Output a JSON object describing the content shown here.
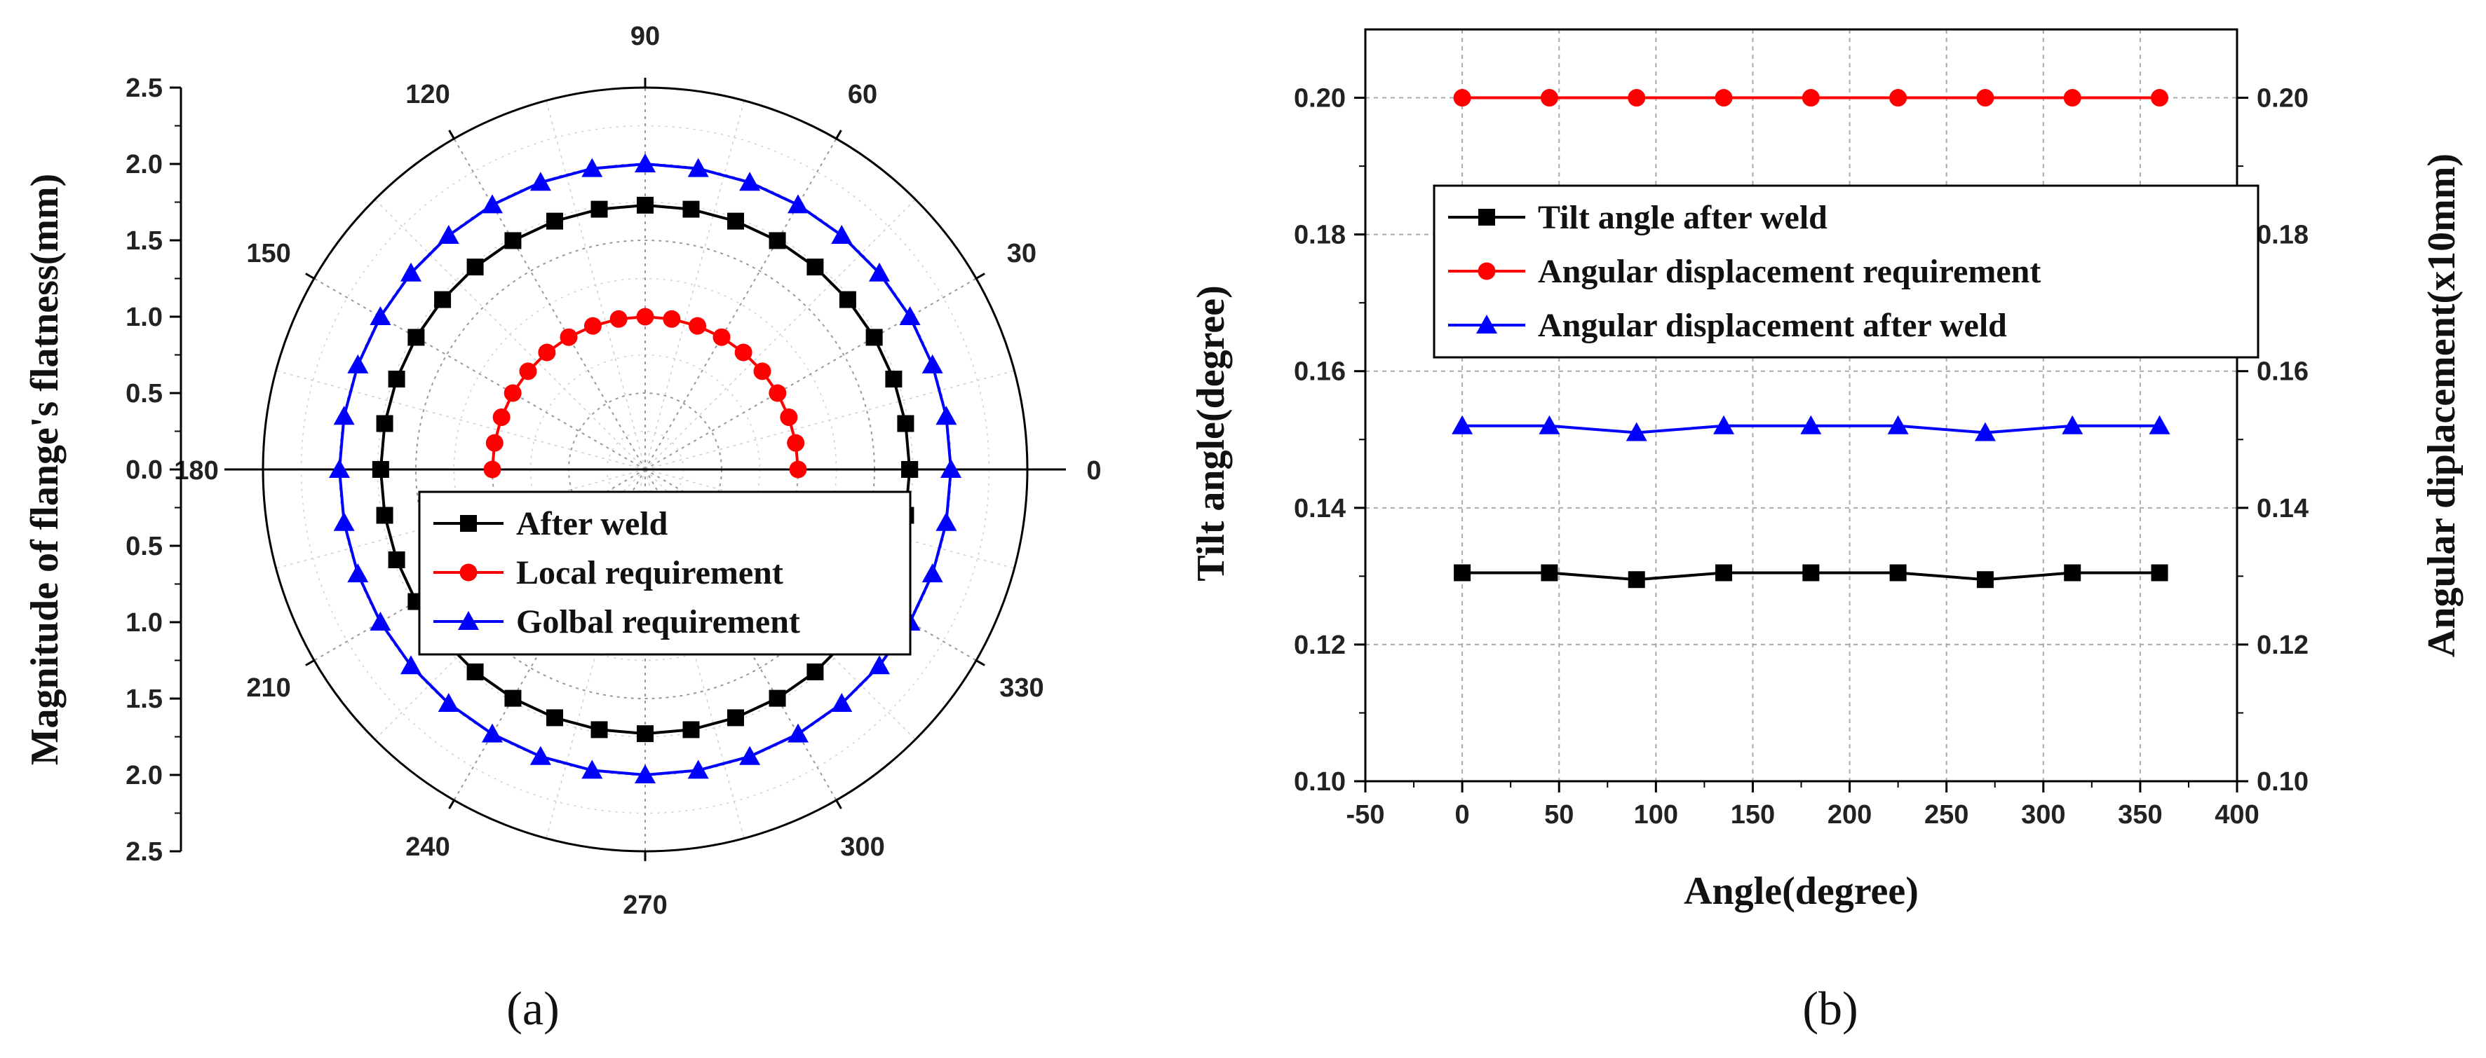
{
  "chart_data": [
    {
      "type": "polar",
      "panel_label": "(a)",
      "ylabel": "Magnitude of flange's flatness(mm)",
      "radial_range": [
        0,
        2.5
      ],
      "radial_ticks": [
        "2.5",
        "2.0",
        "1.5",
        "1.0",
        "0.5",
        "0.0",
        "0.5",
        "1.0",
        "1.5",
        "2.0",
        "2.5"
      ],
      "angle_ticks": [
        "0",
        "30",
        "60",
        "90",
        "120",
        "150",
        "180",
        "210",
        "240",
        "270",
        "300",
        "330"
      ],
      "grid": true,
      "legend_position": "center-bottom",
      "series": [
        {
          "name": "After weld",
          "color": "#000000",
          "marker": "square",
          "radius": 1.73,
          "angle_step": 10,
          "angle_from": 0,
          "angle_to": 360
        },
        {
          "name": "Local requirement",
          "color": "#ff0000",
          "marker": "circle",
          "radius": 1.0,
          "angle_step": 10,
          "angle_from": 0,
          "angle_to": 180
        },
        {
          "name": "Golbal requirement",
          "color": "#0000ff",
          "marker": "triangle",
          "radius": 2.0,
          "angle_step": 10,
          "angle_from": 0,
          "angle_to": 360
        }
      ]
    },
    {
      "type": "line",
      "panel_label": "(b)",
      "xlabel": "Angle(degree)",
      "ylabel": "Tilt angle(degree)",
      "ylabel_right": "Angular diplacement(x10mm)",
      "xlim": [
        -50,
        400
      ],
      "ylim": [
        0.1,
        0.21
      ],
      "x_ticks": [
        "-50",
        "0",
        "50",
        "100",
        "150",
        "200",
        "250",
        "300",
        "350",
        "400"
      ],
      "y_ticks": [
        "0.10",
        "0.12",
        "0.14",
        "0.16",
        "0.18",
        "0.20"
      ],
      "y_ticks_right": [
        "0.10",
        "0.12",
        "0.14",
        "0.16",
        "0.18",
        "0.20"
      ],
      "grid": true,
      "legend_position": "upper-center",
      "x": [
        0,
        45,
        90,
        135,
        180,
        225,
        270,
        315,
        360
      ],
      "series": [
        {
          "name": "Tilt angle after weld",
          "color": "#000000",
          "marker": "square",
          "values": [
            0.1305,
            0.1305,
            0.1295,
            0.1305,
            0.1305,
            0.1305,
            0.1295,
            0.1305,
            0.1305
          ]
        },
        {
          "name": "Angular displacement requirement",
          "color": "#ff0000",
          "marker": "circle",
          "values": [
            0.2,
            0.2,
            0.2,
            0.2,
            0.2,
            0.2,
            0.2,
            0.2,
            0.2
          ]
        },
        {
          "name": "Angular displacement after weld",
          "color": "#0000ff",
          "marker": "triangle",
          "values": [
            0.152,
            0.152,
            0.151,
            0.152,
            0.152,
            0.152,
            0.151,
            0.152,
            0.152
          ]
        }
      ]
    }
  ]
}
